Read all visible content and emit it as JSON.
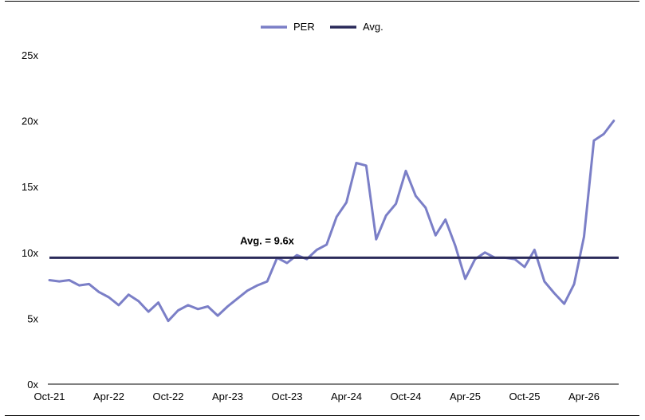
{
  "chart_data": {
    "type": "line",
    "title": "",
    "xlabel": "",
    "ylabel": "",
    "ylim": [
      0,
      25
    ],
    "yticks": [
      0,
      5,
      10,
      15,
      20,
      25
    ],
    "ytick_labels": [
      "0x",
      "5x",
      "10x",
      "15x",
      "20x",
      "25x"
    ],
    "xticks": [
      "Oct-21",
      "Apr-22",
      "Oct-22",
      "Apr-23",
      "Oct-23",
      "Apr-24",
      "Oct-24",
      "Apr-25",
      "Oct-25",
      "Apr-26"
    ],
    "grid": false,
    "legend_position": "top-center",
    "legend": [
      {
        "name": "PER",
        "color": "#7b7fc7"
      },
      {
        "name": "Avg.",
        "color": "#2a2a5a"
      }
    ],
    "colors": {
      "per": "#7b7fc7",
      "avg": "#2a2a5a"
    },
    "series": [
      {
        "name": "PER",
        "x": [
          "Oct-21",
          "Nov-21",
          "Dec-21",
          "Jan-22",
          "Feb-22",
          "Mar-22",
          "Apr-22",
          "May-22",
          "Jun-22",
          "Jul-22",
          "Aug-22",
          "Sep-22",
          "Oct-22",
          "Nov-22",
          "Dec-22",
          "Jan-23",
          "Feb-23",
          "Mar-23",
          "Apr-23",
          "May-23",
          "Jun-23",
          "Jul-23",
          "Aug-23",
          "Sep-23",
          "Oct-23",
          "Nov-23",
          "Dec-23",
          "Jan-24",
          "Feb-24",
          "Mar-24",
          "Apr-24",
          "May-24",
          "Jun-24",
          "Jul-24",
          "Aug-24",
          "Sep-24",
          "Oct-24",
          "Nov-24",
          "Dec-24",
          "Jan-25",
          "Feb-25",
          "Mar-25",
          "Apr-25",
          "May-25",
          "Jun-25",
          "Jul-25",
          "Aug-25",
          "Sep-25",
          "Oct-25",
          "Nov-25",
          "Dec-25",
          "Jan-26",
          "Feb-26",
          "Mar-26",
          "Apr-26",
          "May-26",
          "Jun-26",
          "Jul-26"
        ],
        "values": [
          7.9,
          7.8,
          7.9,
          7.5,
          7.6,
          7.0,
          6.6,
          6.0,
          6.8,
          6.3,
          5.5,
          6.2,
          4.8,
          5.6,
          6.0,
          5.7,
          5.9,
          5.2,
          5.9,
          6.5,
          7.1,
          7.5,
          7.8,
          9.6,
          9.2,
          9.8,
          9.5,
          10.2,
          10.6,
          12.7,
          13.8,
          16.8,
          16.6,
          11.0,
          12.8,
          13.7,
          16.2,
          14.3,
          13.4,
          11.3,
          12.5,
          10.5,
          8.0,
          9.5,
          10.0,
          9.6,
          9.6,
          9.5,
          8.9,
          10.2,
          7.8,
          6.9,
          6.1,
          7.6,
          11.2,
          18.5,
          19.0,
          20.0
        ]
      },
      {
        "name": "Avg.",
        "x": [
          "Oct-21",
          "Jul-26"
        ],
        "values": [
          9.6,
          9.6
        ]
      }
    ],
    "annotations": [
      {
        "text": "Avg. = 9.6x",
        "x": "Oct-23",
        "y": 9.6
      }
    ]
  }
}
